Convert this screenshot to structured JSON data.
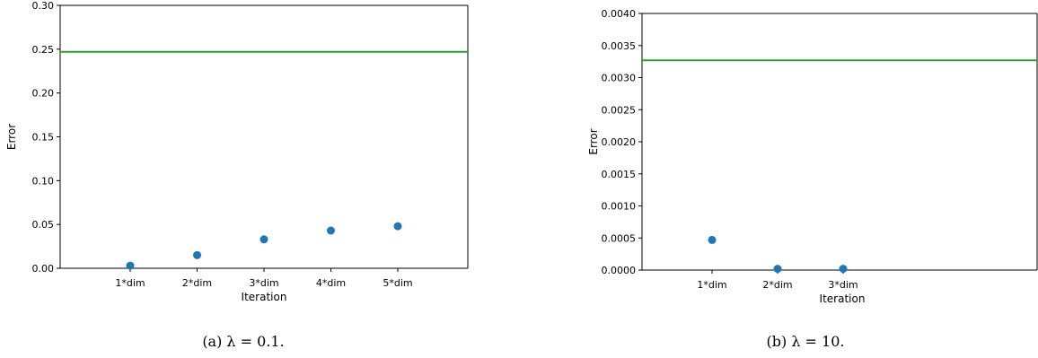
{
  "chart_data": [
    {
      "type": "scatter",
      "caption": "(a) λ = 0.1.",
      "xlabel": "Iteration",
      "ylabel": "Error",
      "categories": [
        "1*dim",
        "2*dim",
        "3*dim",
        "4*dim",
        "5*dim"
      ],
      "ylim": [
        0,
        0.3
      ],
      "yticks": [
        "0.00",
        "0.05",
        "0.10",
        "0.15",
        "0.20",
        "0.25",
        "0.30"
      ],
      "points": [
        0.003,
        0.015,
        0.033,
        0.043,
        0.048
      ],
      "hline": 0.247,
      "point_color": "#1f77b4",
      "line_color": "#2ca02c"
    },
    {
      "type": "scatter",
      "caption": "(b) λ = 10.",
      "xlabel": "Iteration",
      "ylabel": "Error",
      "categories": [
        "1*dim",
        "2*dim",
        "3*dim"
      ],
      "ylim": [
        0,
        0.004
      ],
      "yticks": [
        "0.0000",
        "0.0005",
        "0.0010",
        "0.0015",
        "0.0020",
        "0.0025",
        "0.0030",
        "0.0035",
        "0.0040"
      ],
      "points": [
        0.00047,
        2e-05,
        2e-05
      ],
      "hline": 0.00327,
      "point_color": "#1f77b4",
      "line_color": "#2ca02c"
    }
  ]
}
